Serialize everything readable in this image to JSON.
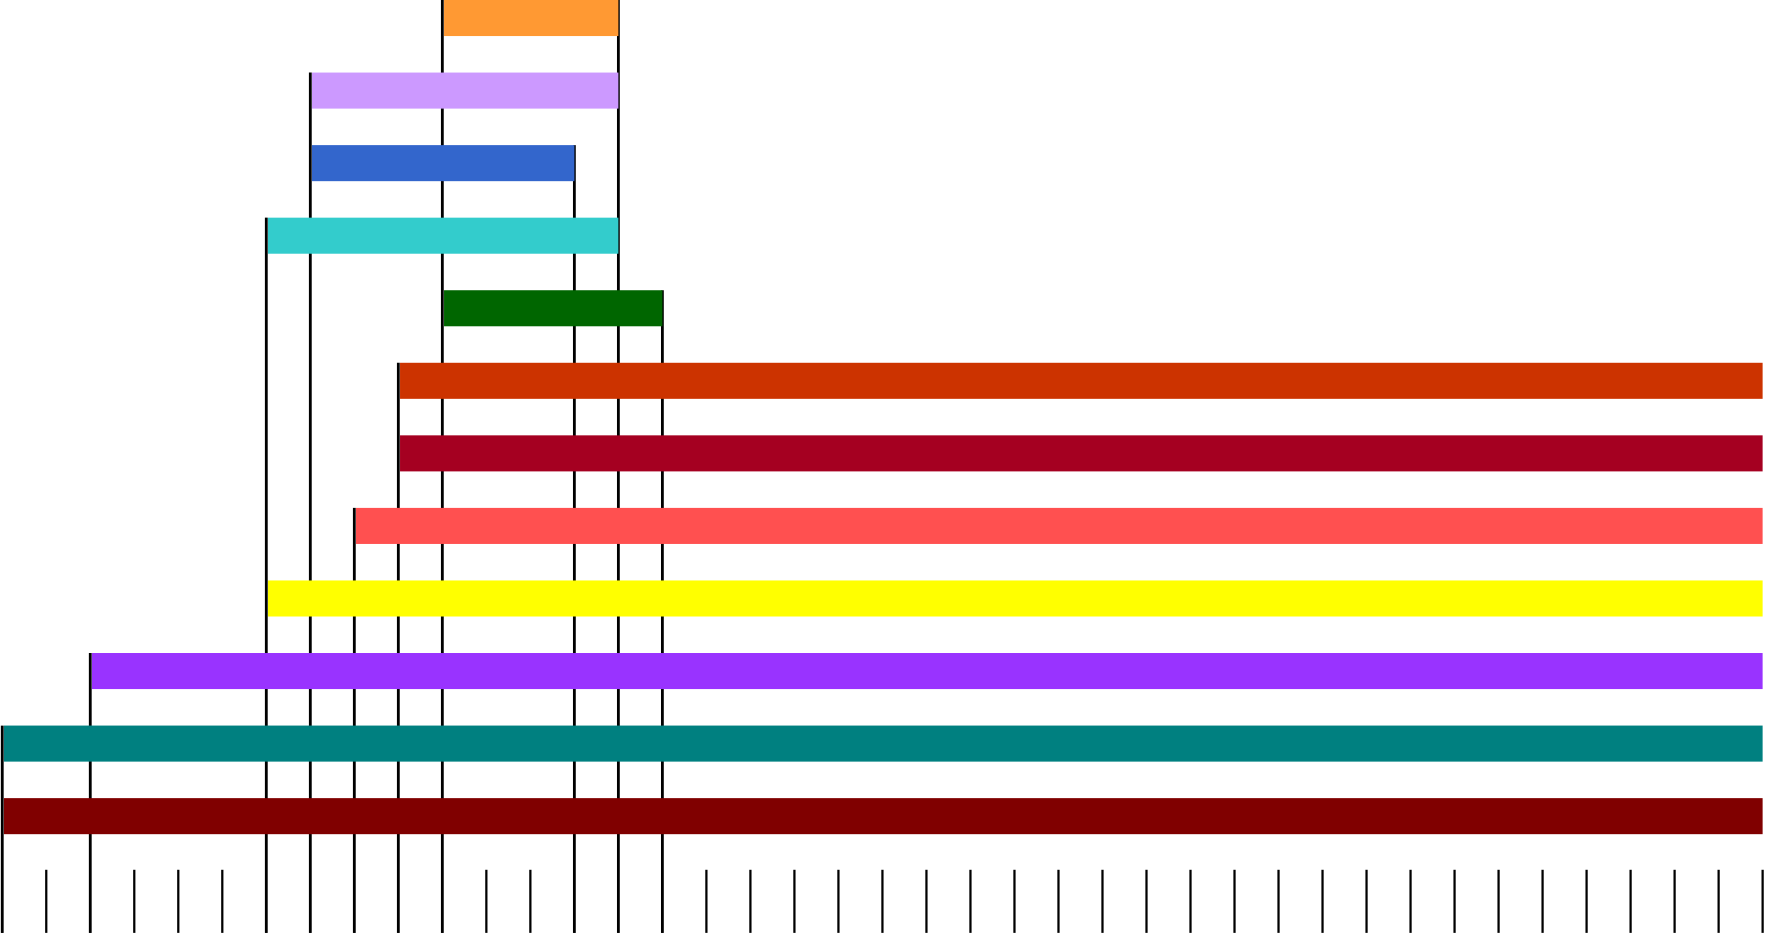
{
  "chart_data": {
    "type": "gantt",
    "tasks": [
      {
        "start": 10,
        "end": 14,
        "color": "#ff9933"
      },
      {
        "start": 7,
        "end": 14,
        "color": "#cc99ff"
      },
      {
        "start": 7,
        "end": 13,
        "color": "#3366cc"
      },
      {
        "start": 6,
        "end": 14,
        "color": "#33cccc"
      },
      {
        "start": 10,
        "end": 15,
        "color": "#006600"
      },
      {
        "start": 9,
        "end": 40,
        "color": "#cc3300"
      },
      {
        "start": 9,
        "end": 40,
        "color": "#a50021"
      },
      {
        "start": 8,
        "end": 40,
        "color": "#ff5050"
      },
      {
        "start": 6,
        "end": 40,
        "color": "#ffff00"
      },
      {
        "start": 2,
        "end": 40,
        "color": "#9933ff"
      },
      {
        "start": 0,
        "end": 40,
        "color": "#008080"
      },
      {
        "start": 0,
        "end": 40,
        "color": "#800000"
      }
    ],
    "xlim": [
      0,
      40
    ],
    "xticks": [
      0,
      1,
      2,
      3,
      4,
      5,
      6,
      7,
      8,
      9,
      10,
      11,
      12,
      13,
      14,
      15,
      16,
      17,
      18,
      19,
      20,
      21,
      22,
      23,
      24,
      25,
      26,
      27,
      28,
      29,
      30,
      31,
      32,
      33,
      34,
      35,
      36,
      37,
      38,
      39,
      40
    ]
  }
}
